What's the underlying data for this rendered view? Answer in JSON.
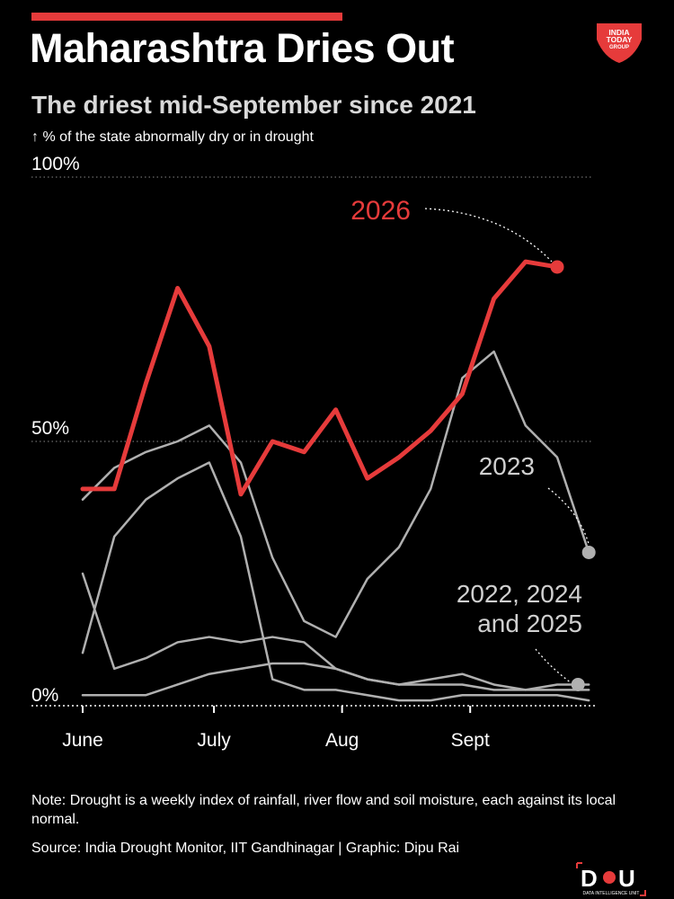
{
  "header": {
    "title": "Maharashtra Dries Out",
    "subtitle": "The driest mid-September since 2021",
    "axis_note": "↑ % of the state abnormally dry or in drought",
    "brand_logo_text": "INDIA TODAY GROUP"
  },
  "colors": {
    "highlight": "#e63b3b",
    "other_years": "#b0b0b0",
    "background": "#000000",
    "gridline": "#888888"
  },
  "chart_data": {
    "type": "line",
    "x_tick_labels": [
      "June",
      "July",
      "Aug",
      "Sept"
    ],
    "y_tick_labels": [
      "100%",
      "50%",
      "0%"
    ],
    "y_ticks": [
      100,
      50,
      0
    ],
    "ylim": [
      0,
      100
    ],
    "grid": "dotted horizontal at 100% and 50%",
    "legend": "direct labels",
    "series": [
      {
        "name": "2026",
        "highlight": true,
        "values": [
          41,
          41,
          61,
          79,
          68,
          40,
          50,
          48,
          56,
          43,
          47,
          52,
          59,
          77,
          84,
          83
        ],
        "marker_at_end": true
      },
      {
        "name": "2023",
        "highlight": false,
        "values": [
          39,
          45,
          48,
          50,
          53,
          46,
          28,
          16,
          13,
          24,
          30,
          41,
          62,
          67,
          53,
          47,
          29
        ],
        "marker_at_end": true
      },
      {
        "name": "",
        "highlight": false,
        "values": [
          10,
          32,
          39,
          43,
          46,
          32,
          5,
          3,
          3,
          2,
          1,
          1,
          2,
          2,
          2,
          2,
          1
        ]
      },
      {
        "name": "",
        "highlight": false,
        "values": [
          25,
          7,
          9,
          12,
          13,
          12,
          13,
          12,
          7,
          5,
          4,
          5,
          6,
          4,
          3,
          4,
          4
        ]
      },
      {
        "name": "",
        "highlight": false,
        "values": [
          2,
          2,
          2,
          4,
          6,
          7,
          8,
          8,
          7,
          5,
          4,
          4,
          4,
          3,
          3,
          3,
          3
        ]
      }
    ],
    "annotations": [
      {
        "text": "2026",
        "series": "2026"
      },
      {
        "text": "2023",
        "series": "2023"
      },
      {
        "text_line1": "2022, 2024",
        "text_line2": "and 2025"
      }
    ]
  },
  "footer": {
    "note": "Note: Drought is a weekly index of rainfall, river flow and soil moisture, each against its local normal.",
    "source": "Source: India Drought Monitor, IIT Gandhinagar | Graphic: Dipu Rai",
    "brand_left": "D",
    "brand_right": "U",
    "brand_subtext": "DATA INTELLIGENCE UNIT"
  }
}
